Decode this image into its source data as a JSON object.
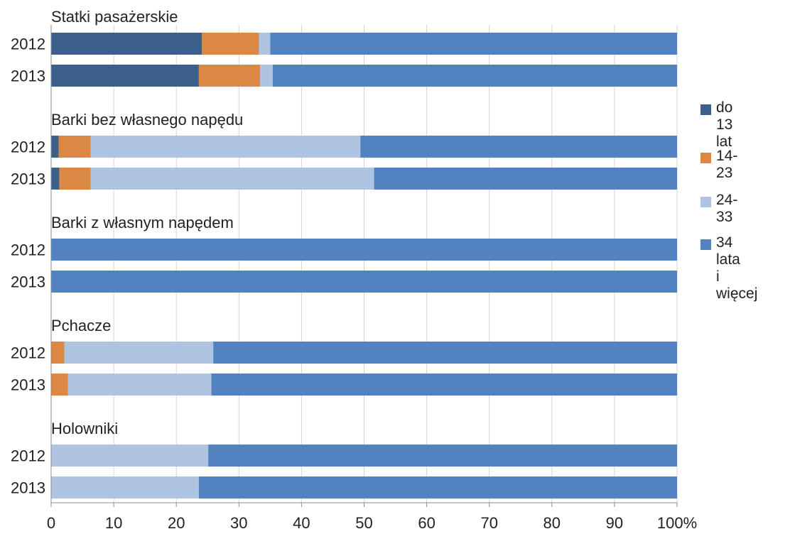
{
  "chart_data": {
    "type": "bar",
    "orientation": "horizontal",
    "stacked": true,
    "percent_stacked": true,
    "xlim": [
      0,
      100
    ],
    "x_ticks": [
      "0",
      "10",
      "20",
      "30",
      "40",
      "50",
      "60",
      "70",
      "80",
      "90",
      "100%"
    ],
    "grid": "vertical",
    "legend_position": "right",
    "series": [
      {
        "name": "do 13 lat",
        "color": "#3d5f8c"
      },
      {
        "name": "14-23",
        "color": "#dc8845"
      },
      {
        "name": "24-33",
        "color": "#afc4e0"
      },
      {
        "name": "34 lata\ni więcej",
        "color": "#5282c0"
      }
    ],
    "groups": [
      {
        "title": "Statki pasażerskie",
        "rows": [
          {
            "label": "2012",
            "values": [
              24.1,
              9.1,
              1.8,
              65.0
            ]
          },
          {
            "label": "2013",
            "values": [
              23.6,
              9.8,
              2.0,
              64.6
            ]
          }
        ]
      },
      {
        "title": "Barki bez własnego napędu",
        "rows": [
          {
            "label": "2012",
            "values": [
              1.2,
              5.1,
              43.1,
              50.6
            ]
          },
          {
            "label": "2013",
            "values": [
              1.3,
              5.0,
              45.3,
              48.4
            ]
          }
        ]
      },
      {
        "title": "Barki z  własnym napędem",
        "rows": [
          {
            "label": "2012",
            "values": [
              0,
              0,
              0,
              100
            ]
          },
          {
            "label": "2013",
            "values": [
              0,
              0,
              0,
              100
            ]
          }
        ]
      },
      {
        "title": "Pchacze",
        "rows": [
          {
            "label": "2012",
            "values": [
              0,
              2.1,
              23.8,
              74.1
            ]
          },
          {
            "label": "2013",
            "values": [
              0,
              2.7,
              22.9,
              74.4
            ]
          }
        ]
      },
      {
        "title": "Holowniki",
        "rows": [
          {
            "label": "2012",
            "values": [
              0,
              0,
              25.1,
              74.9
            ]
          },
          {
            "label": "2013",
            "values": [
              0,
              0,
              23.6,
              76.4
            ]
          }
        ]
      }
    ]
  }
}
